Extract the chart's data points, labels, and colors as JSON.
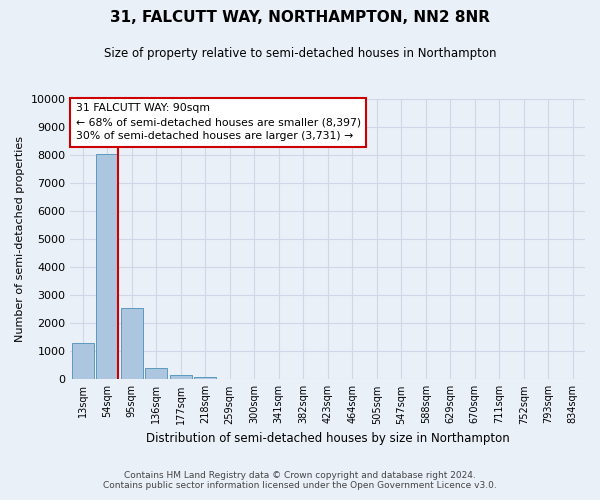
{
  "title": "31, FALCUTT WAY, NORTHAMPTON, NN2 8NR",
  "subtitle": "Size of property relative to semi-detached houses in Northampton",
  "xlabel": "Distribution of semi-detached houses by size in Northampton",
  "ylabel": "Number of semi-detached properties",
  "footnote1": "Contains HM Land Registry data © Crown copyright and database right 2024.",
  "footnote2": "Contains public sector information licensed under the Open Government Licence v3.0.",
  "bar_labels": [
    "13sqm",
    "54sqm",
    "95sqm",
    "136sqm",
    "177sqm",
    "218sqm",
    "259sqm",
    "300sqm",
    "341sqm",
    "382sqm",
    "423sqm",
    "464sqm",
    "505sqm",
    "547sqm",
    "588sqm",
    "629sqm",
    "670sqm",
    "711sqm",
    "752sqm",
    "793sqm",
    "834sqm"
  ],
  "bar_values": [
    1300,
    8050,
    2530,
    390,
    155,
    100,
    0,
    0,
    0,
    0,
    0,
    0,
    0,
    0,
    0,
    0,
    0,
    0,
    0,
    0,
    0
  ],
  "bar_color": "#adc6e0",
  "bar_edge_color": "#5a9abf",
  "ylim": [
    0,
    10000
  ],
  "yticks": [
    0,
    1000,
    2000,
    3000,
    4000,
    5000,
    6000,
    7000,
    8000,
    9000,
    10000
  ],
  "property_bar_index": 1,
  "annotation_title": "31 FALCUTT WAY: 90sqm",
  "annotation_line1": "← 68% of semi-detached houses are smaller (8,397)",
  "annotation_line2": "30% of semi-detached houses are larger (3,731) →",
  "annotation_box_color": "#ffffff",
  "annotation_box_edge": "#cc0000",
  "vline_color": "#cc0000",
  "grid_color": "#d0d8e8",
  "bg_color": "#eaf0f8"
}
